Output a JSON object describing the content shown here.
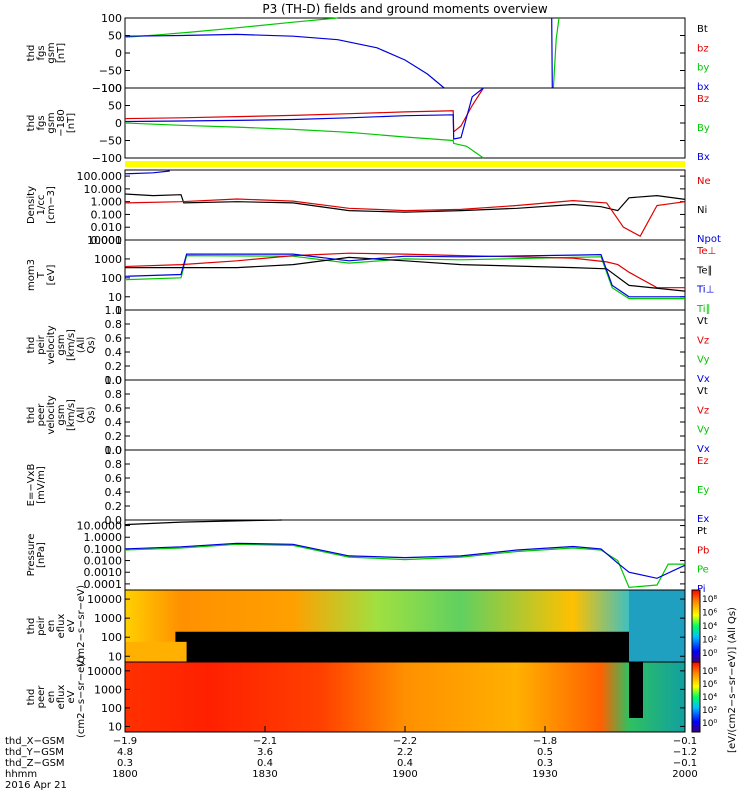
{
  "title": "P3 (TH-D) fields and ground moments overview",
  "colors": {
    "black": "#000000",
    "red": "#e00000",
    "green": "#00c800",
    "blue": "#0000e0",
    "yellow": "#ffff00"
  },
  "chart_data": [
    {
      "type": "line",
      "panel": "fgs_gsm",
      "ylabel": "thd fgs gsm [nT]",
      "ylim": [
        -100,
        100
      ],
      "ticks": [
        "100",
        "50",
        "0",
        "−50",
        "−100"
      ],
      "legend": [
        "Bt",
        "bz",
        "by",
        "bx"
      ],
      "series": [
        {
          "name": "by",
          "color": "green",
          "points": [
            [
              0,
              45
            ],
            [
              0.06,
              52
            ],
            [
              0.12,
              60
            ],
            [
              0.2,
              72
            ],
            [
              0.3,
              88
            ],
            [
              0.38,
              100
            ]
          ]
        },
        {
          "name": "bx",
          "color": "blue",
          "points": [
            [
              0,
              48
            ],
            [
              0.1,
              50
            ],
            [
              0.2,
              53
            ],
            [
              0.3,
              48
            ],
            [
              0.38,
              38
            ],
            [
              0.45,
              15
            ],
            [
              0.5,
              -20
            ],
            [
              0.54,
              -60
            ],
            [
              0.57,
              -100
            ]
          ]
        },
        {
          "name": "by_late",
          "color": "green",
          "points": [
            [
              0.765,
              -100
            ],
            [
              0.77,
              40
            ],
            [
              0.775,
              100
            ]
          ]
        },
        {
          "name": "bx_late",
          "color": "blue",
          "points": [
            [
              0.762,
              100
            ],
            [
              0.763,
              -100
            ]
          ]
        }
      ]
    },
    {
      "type": "line",
      "panel": "fgs_gsm_180",
      "ylabel": "thd fgs gsm −180 [nT]",
      "ylim": [
        -120,
        120
      ],
      "ticks": [
        "100",
        "50",
        "0",
        "−50",
        "−100"
      ],
      "legend": [
        "Bz",
        "By",
        "Bx"
      ],
      "series": [
        {
          "name": "Bz",
          "color": "red",
          "points": [
            [
              0,
              15
            ],
            [
              0.1,
              18
            ],
            [
              0.2,
              22
            ],
            [
              0.3,
              26
            ],
            [
              0.4,
              32
            ],
            [
              0.5,
              38
            ],
            [
              0.586,
              42
            ],
            [
              0.587,
              -30
            ],
            [
              0.6,
              -10
            ],
            [
              0.62,
              60
            ],
            [
              0.64,
              120
            ]
          ]
        },
        {
          "name": "Bx",
          "color": "blue",
          "points": [
            [
              0,
              5
            ],
            [
              0.1,
              7
            ],
            [
              0.2,
              9
            ],
            [
              0.3,
              12
            ],
            [
              0.4,
              18
            ],
            [
              0.5,
              25
            ],
            [
              0.586,
              28
            ],
            [
              0.587,
              -55
            ],
            [
              0.6,
              -50
            ],
            [
              0.62,
              90
            ],
            [
              0.64,
              120
            ]
          ]
        },
        {
          "name": "By",
          "color": "green",
          "points": [
            [
              0,
              0
            ],
            [
              0.1,
              -8
            ],
            [
              0.2,
              -14
            ],
            [
              0.3,
              -22
            ],
            [
              0.4,
              -32
            ],
            [
              0.5,
              -48
            ],
            [
              0.586,
              -60
            ],
            [
              0.587,
              -70
            ],
            [
              0.61,
              -80
            ],
            [
              0.64,
              -120
            ]
          ]
        }
      ]
    },
    {
      "type": "line",
      "panel": "density",
      "ylabel": "Density 1/cc [cm−3]",
      "yscale": "log",
      "ylim": [
        0.001,
        300
      ],
      "ticks": [
        "100.000",
        "10.000",
        "1.000",
        "0.100",
        "0.010",
        "0.001"
      ],
      "legend": [
        "Ne",
        "Ni",
        "Npot"
      ],
      "series": [
        {
          "name": "Ni",
          "color": "black",
          "points": [
            [
              0,
              4
            ],
            [
              0.05,
              3
            ],
            [
              0.1,
              3.5
            ],
            [
              0.105,
              0.8
            ],
            [
              0.2,
              1
            ],
            [
              0.3,
              0.8
            ],
            [
              0.4,
              0.2
            ],
            [
              0.5,
              0.15
            ],
            [
              0.6,
              0.2
            ],
            [
              0.7,
              0.3
            ],
            [
              0.8,
              0.6
            ],
            [
              0.85,
              0.4
            ],
            [
              0.88,
              0.2
            ],
            [
              0.9,
              2
            ],
            [
              0.95,
              3
            ],
            [
              1.0,
              1.5
            ]
          ]
        },
        {
          "name": "Ne",
          "color": "red",
          "points": [
            [
              0,
              0.8
            ],
            [
              0.1,
              1
            ],
            [
              0.2,
              1.6
            ],
            [
              0.3,
              1.1
            ],
            [
              0.4,
              0.3
            ],
            [
              0.5,
              0.2
            ],
            [
              0.6,
              0.25
            ],
            [
              0.7,
              0.5
            ],
            [
              0.8,
              1.2
            ],
            [
              0.86,
              0.8
            ],
            [
              0.89,
              0.01
            ],
            [
              0.92,
              0.002
            ],
            [
              0.95,
              0.5
            ],
            [
              1.0,
              1
            ]
          ]
        },
        {
          "name": "Npot",
          "color": "blue",
          "points": [
            [
              0,
              150
            ],
            [
              0.05,
              180
            ],
            [
              0.08,
              250
            ]
          ]
        }
      ]
    },
    {
      "type": "line",
      "panel": "moments_temp",
      "ylabel": "mom3 T [eV]",
      "yscale": "log",
      "ylim": [
        2,
        10000
      ],
      "ticks": [
        "10000",
        "1000",
        "100",
        "10",
        "1"
      ],
      "legend": [
        "Te⊥",
        "Te∥",
        "Ti⊥",
        "Ti∥"
      ],
      "series": [
        {
          "name": "Ti∥",
          "color": "green",
          "points": [
            [
              0,
              80
            ],
            [
              0.1,
              100
            ],
            [
              0.11,
              1500
            ],
            [
              0.3,
              1400
            ],
            [
              0.4,
              600
            ],
            [
              0.5,
              1000
            ],
            [
              0.6,
              900
            ],
            [
              0.8,
              1200
            ],
            [
              0.85,
              1300
            ],
            [
              0.87,
              30
            ],
            [
              0.9,
              8
            ],
            [
              1.0,
              8
            ]
          ]
        },
        {
          "name": "Te⊥",
          "color": "red",
          "points": [
            [
              0,
              400
            ],
            [
              0.1,
              500
            ],
            [
              0.2,
              800
            ],
            [
              0.3,
              1500
            ],
            [
              0.4,
              2000
            ],
            [
              0.5,
              1800
            ],
            [
              0.6,
              1500
            ],
            [
              0.8,
              1100
            ],
            [
              0.86,
              700
            ],
            [
              0.88,
              500
            ],
            [
              0.9,
              200
            ],
            [
              0.95,
              30
            ],
            [
              1.0,
              30
            ]
          ]
        },
        {
          "name": "Te∥",
          "color": "black",
          "points": [
            [
              0,
              350
            ],
            [
              0.1,
              350
            ],
            [
              0.2,
              350
            ],
            [
              0.3,
              500
            ],
            [
              0.4,
              1200
            ],
            [
              0.5,
              800
            ],
            [
              0.6,
              500
            ],
            [
              0.8,
              350
            ],
            [
              0.86,
              300
            ],
            [
              0.9,
              40
            ],
            [
              1.0,
              20
            ]
          ]
        },
        {
          "name": "Ti⊥",
          "color": "blue",
          "points": [
            [
              0,
              120
            ],
            [
              0.1,
              150
            ],
            [
              0.11,
              1800
            ],
            [
              0.3,
              1800
            ],
            [
              0.4,
              800
            ],
            [
              0.5,
              1400
            ],
            [
              0.6,
              1300
            ],
            [
              0.8,
              1600
            ],
            [
              0.85,
              1700
            ],
            [
              0.87,
              40
            ],
            [
              0.9,
              10
            ],
            [
              1.0,
              10
            ]
          ]
        }
      ]
    },
    {
      "type": "line",
      "panel": "peir_velocity",
      "ylabel": "thd peir velocity gsm [km/s] (All Qs)",
      "ylim": [
        0,
        1
      ],
      "ticks": [
        "1.0",
        "0.8",
        "0.6",
        "0.4",
        "0.2",
        "0.0"
      ],
      "legend": [
        "Vt",
        "Vz",
        "Vy",
        "Vx"
      ],
      "series": []
    },
    {
      "type": "line",
      "panel": "peer_velocity",
      "ylabel": "thd peer velocity gsm [km/s] (All Qs)",
      "ylim": [
        0,
        1
      ],
      "ticks": [
        "1.0",
        "0.8",
        "0.6",
        "0.4",
        "0.2",
        "0.0"
      ],
      "legend": [
        "Vt",
        "Vz",
        "Vy",
        "Vx"
      ],
      "series": []
    },
    {
      "type": "line",
      "panel": "efield",
      "ylabel": "E=−VxB [mV/m]",
      "ylim": [
        0,
        1
      ],
      "ticks": [
        "1.0",
        "0.8",
        "0.6",
        "0.4",
        "0.2",
        "0.0"
      ],
      "legend": [
        "Ez",
        "Ey",
        "Ex"
      ],
      "series": []
    },
    {
      "type": "line",
      "panel": "pressure",
      "ylabel": "Pressure [nPa]",
      "yscale": "log",
      "ylim": [
        3e-05,
        30
      ],
      "ticks": [
        "10.0000",
        "1.0000",
        "0.1000",
        "0.0100",
        "0.0010",
        "0.0001"
      ],
      "legend": [
        "Pt",
        "Pb",
        "Pe",
        "Pi"
      ],
      "series": [
        {
          "name": "Pt",
          "color": "black",
          "points": [
            [
              0,
              12
            ],
            [
              0.1,
              20
            ],
            [
              0.2,
              25
            ],
            [
              0.28,
              30
            ]
          ]
        },
        {
          "name": "Pe",
          "color": "green",
          "points": [
            [
              0,
              0.08
            ],
            [
              0.1,
              0.12
            ],
            [
              0.2,
              0.25
            ],
            [
              0.3,
              0.2
            ],
            [
              0.4,
              0.02
            ],
            [
              0.5,
              0.012
            ],
            [
              0.6,
              0.02
            ],
            [
              0.7,
              0.06
            ],
            [
              0.8,
              0.12
            ],
            [
              0.85,
              0.08
            ],
            [
              0.88,
              0.01
            ],
            [
              0.9,
              5e-05
            ],
            [
              0.95,
              8e-05
            ],
            [
              0.97,
              0.005
            ],
            [
              1.0,
              0.005
            ]
          ]
        },
        {
          "name": "Pi",
          "color": "blue",
          "points": [
            [
              0,
              0.1
            ],
            [
              0.1,
              0.15
            ],
            [
              0.2,
              0.3
            ],
            [
              0.3,
              0.25
            ],
            [
              0.4,
              0.025
            ],
            [
              0.5,
              0.018
            ],
            [
              0.6,
              0.025
            ],
            [
              0.7,
              0.08
            ],
            [
              0.8,
              0.16
            ],
            [
              0.85,
              0.1
            ],
            [
              0.88,
              0.006
            ],
            [
              0.9,
              0.001
            ],
            [
              0.95,
              0.0003
            ],
            [
              1.0,
              0.004
            ]
          ]
        }
      ]
    },
    {
      "type": "heatmap",
      "panel": "peir_en_eflux",
      "ylabel": "thd peir en eflux eV (cm2−s−sr−eV)",
      "yscale": "log",
      "ylim": [
        5,
        30000
      ],
      "ticks": [
        "10000",
        "1000",
        "100",
        "10"
      ],
      "colorbar": {
        "label": "[eV/(cm2−s−sr−eV)] (All Qs)",
        "ticks": [
          "10⁸",
          "10⁶",
          "10⁴",
          "10²",
          "10⁰"
        ]
      }
    },
    {
      "type": "heatmap",
      "panel": "peer_en_eflux",
      "ylabel": "thd peer en eflux eV (cm2−s−sr−eV)",
      "yscale": "log",
      "ylim": [
        5,
        30000
      ],
      "ticks": [
        "10000",
        "1000",
        "100",
        "10"
      ],
      "colorbar": {
        "label": "[eV/(cm2−s−sr−eV)]",
        "ticks": [
          "10⁸",
          "10⁶",
          "10⁴",
          "10²",
          "10⁰"
        ]
      }
    }
  ],
  "xaxis": {
    "rows": [
      {
        "label": "thd_X−GSM",
        "values": [
          "−1.9",
          "−2.1",
          "−2.2",
          "−1.8",
          "−0.1"
        ]
      },
      {
        "label": "thd_Y−GSM",
        "values": [
          "4.8",
          "3.6",
          "2.2",
          "0.5",
          "−1.2"
        ]
      },
      {
        "label": "thd_Z−GSM",
        "values": [
          "0.3",
          "0.4",
          "0.4",
          "0.3",
          "−0.1"
        ]
      },
      {
        "label": "hhmm",
        "values": [
          "1800",
          "1830",
          "1900",
          "1930",
          "2000"
        ]
      }
    ],
    "date": "2016 Apr 21"
  }
}
